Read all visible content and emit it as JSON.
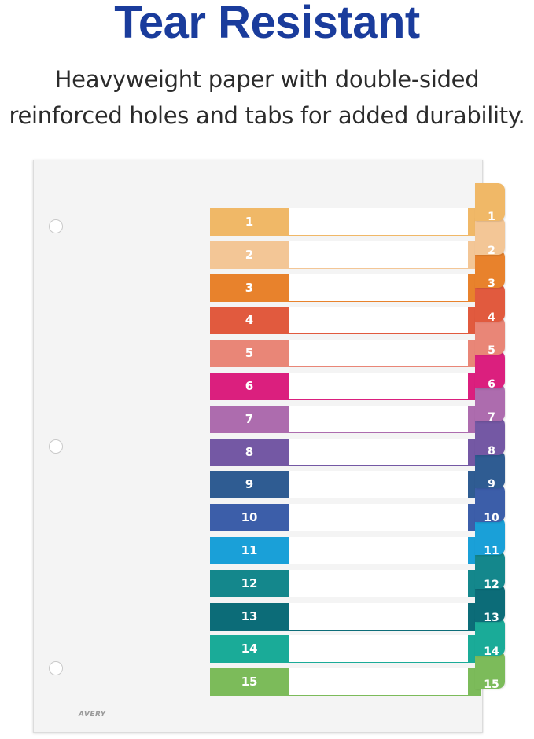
{
  "headline": "Tear Resistant",
  "subtext": {
    "line1": "Heavyweight paper with double-sided",
    "line2": "reinforced holes and tabs for added durability."
  },
  "brand": "AVERY",
  "tabs": [
    {
      "label": "1",
      "color": "#f0b867"
    },
    {
      "label": "2",
      "color": "#f3c696"
    },
    {
      "label": "3",
      "color": "#e8822c"
    },
    {
      "label": "4",
      "color": "#e15a3e"
    },
    {
      "label": "5",
      "color": "#e98677"
    },
    {
      "label": "6",
      "color": "#db1f7e"
    },
    {
      "label": "7",
      "color": "#ad6cae"
    },
    {
      "label": "8",
      "color": "#7458a4"
    },
    {
      "label": "9",
      "color": "#2f5c92"
    },
    {
      "label": "10",
      "color": "#3c5ea9"
    },
    {
      "label": "11",
      "color": "#1aa0d8"
    },
    {
      "label": "12",
      "color": "#14878c"
    },
    {
      "label": "13",
      "color": "#0c6c78"
    },
    {
      "label": "14",
      "color": "#1aab98"
    },
    {
      "label": "15",
      "color": "#7cbb5a"
    }
  ]
}
